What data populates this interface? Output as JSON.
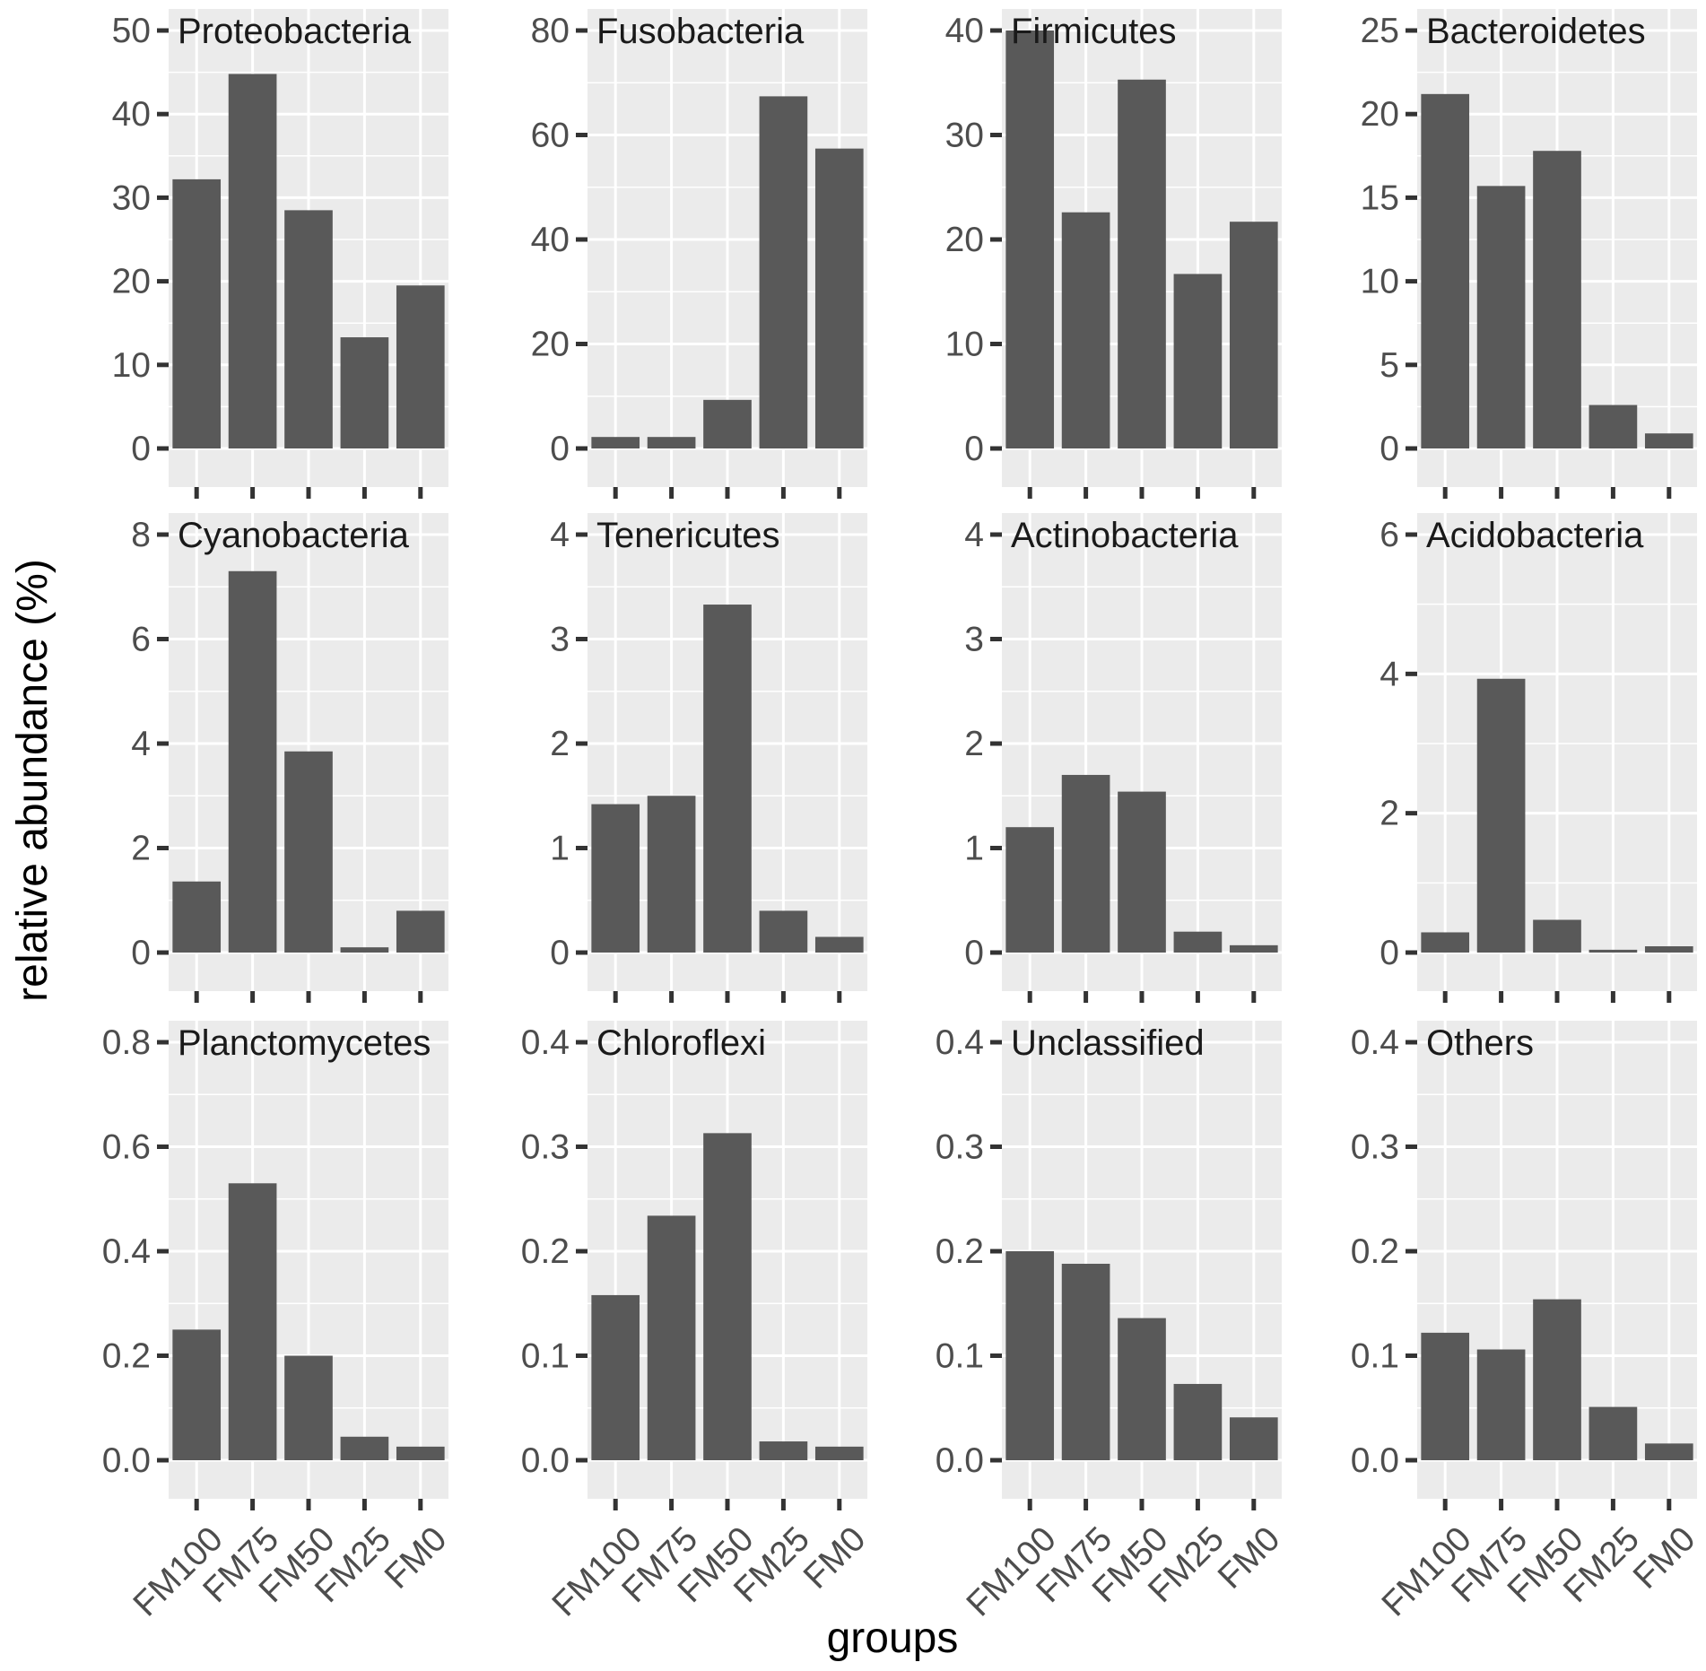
{
  "chart_data": {
    "type": "bar",
    "layout": "facet_wrap",
    "xlabel": "groups",
    "ylabel": "relative abundance (%)",
    "categories": [
      "FM100",
      "FM75",
      "FM50",
      "FM25",
      "FM0"
    ],
    "panels": [
      {
        "name": "Proteobacteria",
        "ylim": [
          0,
          50
        ],
        "yticks": [
          0,
          10,
          20,
          30,
          40,
          50
        ],
        "tick_labels": [
          "0",
          "10",
          "20",
          "30",
          "40",
          "50"
        ],
        "values": [
          32.2,
          44.8,
          28.5,
          13.3,
          19.5
        ]
      },
      {
        "name": "Fusobacteria",
        "ylim": [
          0,
          80
        ],
        "yticks": [
          0,
          20,
          40,
          60,
          80
        ],
        "tick_labels": [
          "0",
          "20",
          "40",
          "60",
          "80"
        ],
        "values": [
          2.2,
          2.2,
          9.3,
          67.4,
          57.4
        ]
      },
      {
        "name": "Firmicutes",
        "ylim": [
          0,
          44
        ],
        "yticks": [
          0,
          10,
          20,
          30,
          40
        ],
        "tick_labels": [
          "0",
          "10",
          "20",
          "30",
          "40"
        ],
        "values": [
          40.0,
          22.6,
          35.3,
          16.7,
          21.7
        ]
      },
      {
        "name": "Bacteroidetes",
        "ylim": [
          0,
          25
        ],
        "yticks": [
          0,
          5,
          10,
          15,
          20,
          25
        ],
        "tick_labels": [
          "0",
          "5",
          "10",
          "15",
          "20",
          "25"
        ],
        "values": [
          21.2,
          15.7,
          17.8,
          2.6,
          0.9
        ]
      },
      {
        "name": "Cyanobacteria",
        "ylim": [
          0,
          8
        ],
        "yticks": [
          0,
          2,
          4,
          6,
          8
        ],
        "tick_labels": [
          "0",
          "2",
          "4",
          "6",
          "8"
        ],
        "values": [
          1.36,
          7.3,
          3.85,
          0.1,
          0.8
        ]
      },
      {
        "name": "Tenericutes",
        "ylim": [
          0,
          4
        ],
        "yticks": [
          0,
          1,
          2,
          3,
          4
        ],
        "tick_labels": [
          "0",
          "1",
          "2",
          "3",
          "4"
        ],
        "values": [
          1.42,
          1.5,
          3.33,
          0.4,
          0.15
        ]
      },
      {
        "name": "Actinobacteria",
        "ylim": [
          0,
          4
        ],
        "yticks": [
          0,
          1,
          2,
          3,
          4
        ],
        "tick_labels": [
          "0",
          "1",
          "2",
          "3",
          "4"
        ],
        "values": [
          1.2,
          1.7,
          1.54,
          0.2,
          0.07
        ]
      },
      {
        "name": "Acidobacteria",
        "ylim": [
          0,
          6
        ],
        "yticks": [
          0,
          2,
          4,
          6
        ],
        "tick_labels": [
          "0",
          "2",
          "4",
          "6"
        ],
        "values": [
          0.29,
          3.93,
          0.47,
          0.04,
          0.09
        ]
      },
      {
        "name": "Planctomycetes",
        "ylim": [
          0,
          0.8
        ],
        "yticks": [
          0,
          0.2,
          0.4,
          0.6,
          0.8
        ],
        "tick_labels": [
          "0.0",
          "0.2",
          "0.4",
          "0.6",
          "0.8"
        ],
        "values": [
          0.25,
          0.53,
          0.2,
          0.045,
          0.026
        ]
      },
      {
        "name": "Chloroflexi",
        "ylim": [
          0,
          0.4
        ],
        "yticks": [
          0,
          0.1,
          0.2,
          0.3,
          0.4
        ],
        "tick_labels": [
          "0.0",
          "0.1",
          "0.2",
          "0.3",
          "0.4"
        ],
        "values": [
          0.158,
          0.234,
          0.313,
          0.018,
          0.013
        ]
      },
      {
        "name": "Unclassified",
        "ylim": [
          0,
          0.4
        ],
        "yticks": [
          0,
          0.1,
          0.2,
          0.3,
          0.4
        ],
        "tick_labels": [
          "0.0",
          "0.1",
          "0.2",
          "0.3",
          "0.4"
        ],
        "values": [
          0.2,
          0.188,
          0.136,
          0.073,
          0.041
        ]
      },
      {
        "name": "Others",
        "ylim": [
          0,
          0.4
        ],
        "yticks": [
          0,
          0.1,
          0.2,
          0.3,
          0.4
        ],
        "tick_labels": [
          "0.0",
          "0.1",
          "0.2",
          "0.3",
          "0.4"
        ],
        "values": [
          0.122,
          0.106,
          0.154,
          0.051,
          0.016
        ]
      }
    ]
  }
}
